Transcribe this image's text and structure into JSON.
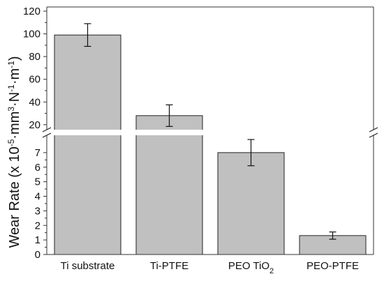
{
  "chart_data": {
    "type": "bar",
    "categories": [
      "Ti substrate",
      "Ti-PTFE",
      "PEO TiO2",
      "PEO-PTFE"
    ],
    "values": [
      99,
      28,
      7.0,
      1.3
    ],
    "errors": [
      10,
      9.5,
      0.9,
      0.25
    ],
    "ylabel": "Wear Rate (x 10-5·mm3·N-1·m-1)",
    "y_axis_break": true,
    "ylim_lower": [
      0,
      8
    ],
    "ylim_upper": [
      15,
      120
    ],
    "yticks_lower": [
      0,
      1,
      2,
      3,
      4,
      5,
      6,
      7
    ],
    "yticks_upper": [
      20,
      40,
      60,
      80,
      100,
      120
    ],
    "bar_color": "#c0c0c0",
    "grid": false,
    "legend": "none"
  }
}
